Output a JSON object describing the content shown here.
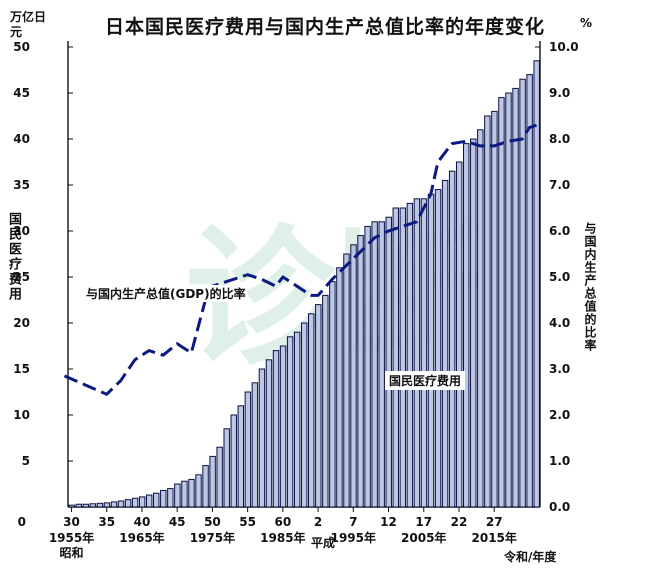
{
  "title": "日本国民医疗费用与国内生产总值比率的年度变化",
  "watermark": "诊断",
  "left_axis": {
    "unit": "万亿日元",
    "label": "国民医疗费用"
  },
  "right_axis": {
    "unit": "%",
    "label": "与国内生产总值的比率"
  },
  "x_axis_unit": "令和/年度",
  "gdp_line_label": "与国内生产总值(GDP)的比率",
  "bar_series_label": "国民医疗费用",
  "chart_data": {
    "type": "bar",
    "title": "日本国民医疗费用与国内生产总值比率的年度变化",
    "xlabel": "令和/年度",
    "ylabel": "国民医疗费用",
    "y2label": "与国内生产总值的比率",
    "ylim": [
      0,
      50
    ],
    "y2lim": [
      0.0,
      10.0
    ],
    "y_ticks": [
      "0",
      "5",
      "10",
      "15",
      "20",
      "25",
      "30",
      "35",
      "40",
      "45",
      "50"
    ],
    "y2_ticks": [
      "0.0",
      "1.0",
      "2.0",
      "3.0",
      "4.0",
      "5.0",
      "6.0",
      "7.0",
      "8.0",
      "9.0",
      "10.0"
    ],
    "x_start_year": 1955,
    "x_ticks": [
      {
        "year": 1955,
        "label": "30"
      },
      {
        "year": 1960,
        "label": "35"
      },
      {
        "year": 1965,
        "label": "40"
      },
      {
        "year": 1970,
        "label": "45"
      },
      {
        "year": 1975,
        "label": "50"
      },
      {
        "year": 1980,
        "label": "55"
      },
      {
        "year": 1985,
        "label": "60"
      },
      {
        "year": 1990,
        "label": "2"
      },
      {
        "year": 1995,
        "label": "7"
      },
      {
        "year": 2000,
        "label": "12"
      },
      {
        "year": 2005,
        "label": "17"
      },
      {
        "year": 2010,
        "label": "22"
      },
      {
        "year": 2015,
        "label": "27"
      }
    ],
    "x_era_labels": [
      {
        "year": 1955,
        "label": "1955年",
        "row": 1
      },
      {
        "year": 1955,
        "label": "昭和",
        "row": 2
      },
      {
        "year": 1965,
        "label": "1965年",
        "row": 1
      },
      {
        "year": 1975,
        "label": "1975年",
        "row": 1
      },
      {
        "year": 1985,
        "label": "1985年",
        "row": 1
      },
      {
        "year": 1989,
        "label": "平成",
        "row": 1
      },
      {
        "year": 1995,
        "label": "1995年",
        "row": 1
      },
      {
        "year": 2005,
        "label": "2005年",
        "row": 1
      },
      {
        "year": 2015,
        "label": "2015年",
        "row": 1
      }
    ],
    "series": [
      {
        "name": "国民医疗费用",
        "type": "bar",
        "axis": "left",
        "values": [
          0.2,
          0.3,
          0.3,
          0.35,
          0.4,
          0.45,
          0.55,
          0.65,
          0.8,
          0.95,
          1.1,
          1.3,
          1.5,
          1.8,
          2.0,
          2.5,
          2.8,
          3.0,
          3.5,
          4.5,
          5.5,
          6.5,
          8.5,
          10.0,
          11.0,
          12.5,
          13.5,
          15.0,
          16.0,
          17.0,
          17.5,
          18.5,
          19.0,
          20.0,
          21.0,
          22.0,
          23.0,
          24.5,
          26.0,
          27.5,
          28.5,
          29.5,
          30.5,
          31.0,
          31.0,
          31.5,
          32.5,
          32.5,
          33.0,
          33.5,
          33.5,
          34.0,
          34.5,
          35.5,
          36.5,
          37.5,
          39.5,
          40.0,
          41.0,
          42.5,
          43.0,
          44.5,
          45.0,
          45.5,
          46.5,
          47.0,
          48.5
        ]
      },
      {
        "name": "与国内生产总值(GDP)的比率",
        "type": "line",
        "axis": "right",
        "style": "dashed",
        "x": [
          1954.0,
          1957.0,
          1960.0,
          1962.0,
          1964.0,
          1966.0,
          1968.0,
          1970.0,
          1972.0,
          1974.0,
          1975.0,
          1977.0,
          1979.0,
          1980.0,
          1982.0,
          1984.0,
          1985.0,
          1987.0,
          1989.0,
          1990.0,
          1992.0,
          1994.0,
          1996.0,
          1998.0,
          2000.0,
          2002.0,
          2004.0,
          2006.0,
          2007.0,
          2009.0,
          2011.0,
          2013.0,
          2015.0,
          2017.0,
          2019.0,
          2020.0,
          2021.0
        ],
        "values": [
          2.85,
          2.65,
          2.45,
          2.75,
          3.2,
          3.4,
          3.3,
          3.55,
          3.35,
          4.5,
          4.8,
          4.9,
          5.0,
          5.05,
          4.95,
          4.8,
          5.0,
          4.8,
          4.6,
          4.6,
          4.95,
          5.25,
          5.55,
          5.85,
          6.0,
          6.1,
          6.2,
          6.8,
          7.5,
          7.9,
          7.95,
          7.85,
          7.85,
          7.95,
          8.0,
          8.25,
          8.3
        ]
      }
    ],
    "colors": {
      "bar_fill": "#bcc7e6",
      "bar_edge": "#0b1040",
      "line": "#0b1a80",
      "watermark": "#d5ece2"
    }
  }
}
